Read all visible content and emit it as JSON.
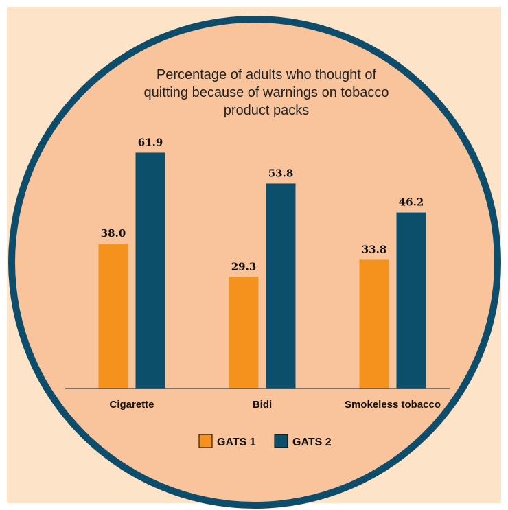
{
  "colors": {
    "background_square": "#fde3c7",
    "circle_fill": "#f9c49c",
    "circle_ring": "#0d4c6a",
    "gats1": "#f5921e",
    "gats2": "#0c4f6b",
    "axis": "#555555"
  },
  "chart_data": {
    "type": "bar",
    "title_lines": [
      "Percentage of adults who thought of",
      "quitting because of warnings on tobacco",
      "product packs"
    ],
    "categories": [
      "Cigarette",
      "Bidi",
      "Smokeless tobacco"
    ],
    "series": [
      {
        "name": "GATS 1",
        "values": [
          38.0,
          29.3,
          33.8
        ],
        "labels": [
          "38.0",
          "29.3",
          "33.8"
        ]
      },
      {
        "name": "GATS 2",
        "values": [
          61.9,
          53.8,
          46.2
        ],
        "labels": [
          "61.9",
          "53.8",
          "46.2"
        ]
      }
    ],
    "ylim": [
      0,
      70
    ],
    "grid": false,
    "legend_position": "bottom"
  }
}
